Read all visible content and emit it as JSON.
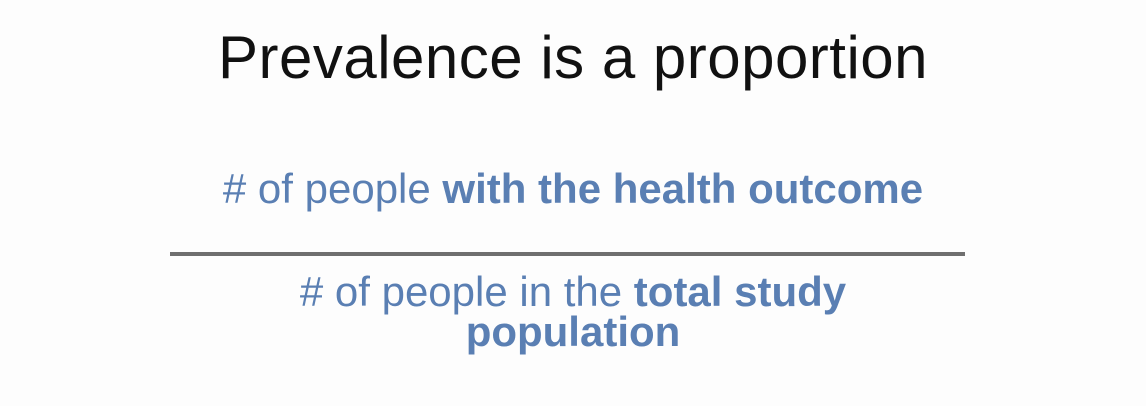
{
  "slide": {
    "title": "Prevalence is a proportion",
    "numerator": {
      "plain": "# of people ",
      "emphasis": "with the health outcome"
    },
    "denominator": {
      "plain": "# of people in the ",
      "emphasis": "total study population"
    },
    "colors": {
      "title": "#111111",
      "fraction_text": "#5a7fb3",
      "fraction_bar": "#6f6f6f",
      "background": "#fdfdfd"
    }
  }
}
